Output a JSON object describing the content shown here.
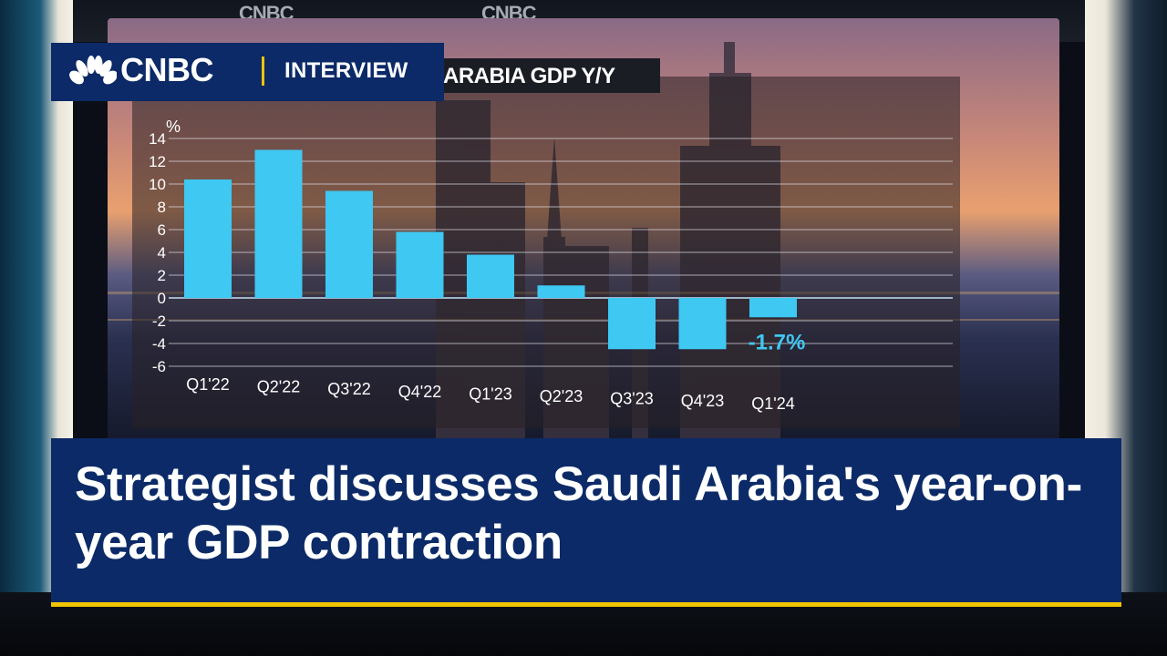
{
  "branding": {
    "logo_text": "CNBC",
    "segment_label": "INTERVIEW",
    "background_logo_text": "CNBC"
  },
  "headline": "Strategist discusses Saudi Arabia's year-on-year GDP contraction",
  "colors": {
    "banner": "#0b2a67",
    "accent": "#f2c400",
    "bars": "#3ec8f2"
  },
  "chart_data": {
    "type": "bar",
    "title": "ARABIA GDP Y/Y",
    "ylabel": "%",
    "categories": [
      "Q1'22",
      "Q2'22",
      "Q3'22",
      "Q4'22",
      "Q1'23",
      "Q2'23",
      "Q3'23",
      "Q4'23",
      "Q1'24"
    ],
    "values": [
      10.4,
      13.0,
      9.4,
      5.8,
      3.8,
      1.1,
      -4.5,
      -4.5,
      -1.7
    ],
    "ylim": [
      -6,
      14
    ],
    "yticks": [
      14,
      12,
      10,
      8,
      6,
      4,
      2,
      0,
      -2,
      -4,
      -6
    ],
    "annotation": {
      "category": "Q1'24",
      "text": "-1.7%"
    },
    "grid": true
  }
}
